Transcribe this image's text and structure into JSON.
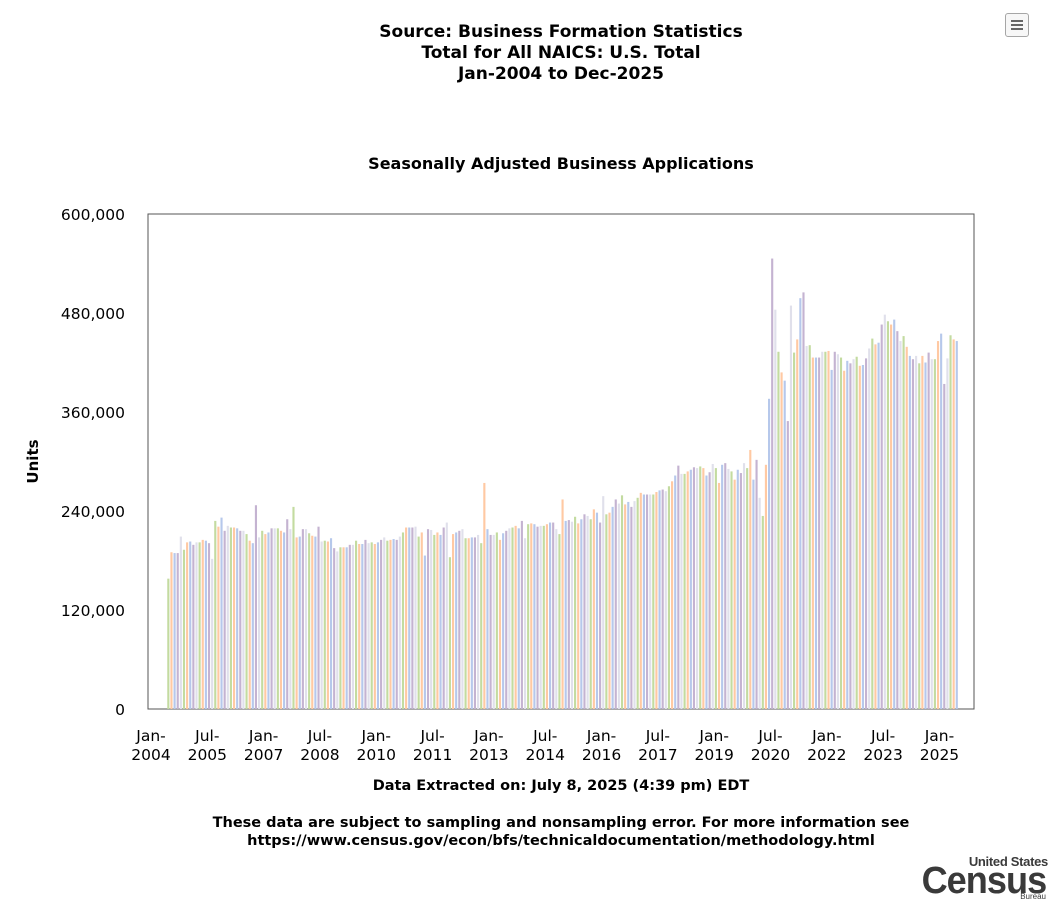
{
  "header": {
    "line1": "Source: Business Formation Statistics",
    "line2": "Total for All NAICS: U.S. Total",
    "line3": "Jan-2004 to Dec-2025"
  },
  "footer": {
    "extracted": "Data Extracted on: July 8, 2025 (4:39 pm) EDT",
    "note_line1": "These data are subject to sampling and nonsampling error. For more information see",
    "note_line2": "https://www.census.gov/econ/bfs/technicaldocumentation/methodology.html"
  },
  "logo": {
    "line1": "United States",
    "line2": "Census",
    "line3": "Bureau"
  },
  "menu_icon": "hamburger-menu-icon",
  "colors": {
    "bar_palette": [
      "#c3dba0",
      "#ffc9a3",
      "#b6c8eb",
      "#c4b3d1",
      "#e0e0eb"
    ]
  },
  "chart_data": {
    "type": "bar",
    "title": "Seasonally Adjusted Business Applications",
    "xlabel": "",
    "ylabel": "Units",
    "ylim": [
      0,
      600000
    ],
    "yticks": [
      "0",
      "120,000",
      "240,000",
      "360,000",
      "480,000",
      "600,000"
    ],
    "xticks": [
      {
        "label": [
          "Jan-",
          "2004"
        ],
        "month": 0
      },
      {
        "label": [
          "Jul-",
          "2005"
        ],
        "month": 18
      },
      {
        "label": [
          "Jan-",
          "2007"
        ],
        "month": 36
      },
      {
        "label": [
          "Jul-",
          "2008"
        ],
        "month": 54
      },
      {
        "label": [
          "Jan-",
          "2010"
        ],
        "month": 72
      },
      {
        "label": [
          "Jul-",
          "2011"
        ],
        "month": 90
      },
      {
        "label": [
          "Jan-",
          "2013"
        ],
        "month": 108
      },
      {
        "label": [
          "Jul-",
          "2014"
        ],
        "month": 126
      },
      {
        "label": [
          "Jan-",
          "2016"
        ],
        "month": 144
      },
      {
        "label": [
          "Jul-",
          "2017"
        ],
        "month": 162
      },
      {
        "label": [
          "Jan-",
          "2019"
        ],
        "month": 180
      },
      {
        "label": [
          "Jul-",
          "2020"
        ],
        "month": 198
      },
      {
        "label": [
          "Jan-",
          "2022"
        ],
        "month": 216
      },
      {
        "label": [
          "Jul-",
          "2023"
        ],
        "month": 234
      },
      {
        "label": [
          "Jan-",
          "2025"
        ],
        "month": 252
      }
    ],
    "start": "Jul-2004",
    "values": [
      158000,
      190000,
      189000,
      189000,
      209000,
      193000,
      202000,
      203000,
      199000,
      202000,
      202000,
      205000,
      204000,
      201000,
      182000,
      228000,
      221000,
      232000,
      216000,
      222000,
      220000,
      220000,
      219000,
      216000,
      216000,
      212000,
      204000,
      201000,
      247000,
      208000,
      216000,
      212000,
      214000,
      219000,
      219000,
      219000,
      216000,
      214000,
      230000,
      218000,
      245000,
      208000,
      209000,
      218000,
      218000,
      213000,
      210000,
      209000,
      221000,
      203000,
      204000,
      203000,
      207000,
      195000,
      191000,
      196000,
      196000,
      196000,
      199000,
      199000,
      204000,
      200000,
      200000,
      205000,
      201000,
      202000,
      200000,
      202000,
      205000,
      208000,
      204000,
      205000,
      206000,
      205000,
      209000,
      214000,
      220000,
      220000,
      220000,
      221000,
      209000,
      214000,
      186000,
      218000,
      217000,
      211000,
      214000,
      211000,
      220000,
      226000,
      184000,
      212000,
      214000,
      216000,
      218000,
      207000,
      207000,
      208000,
      208000,
      211000,
      201000,
      274000,
      218000,
      211000,
      211000,
      214000,
      205000,
      213000,
      216000,
      219000,
      220000,
      222000,
      219000,
      228000,
      207000,
      224000,
      225000,
      224000,
      221000,
      222000,
      222000,
      224000,
      226000,
      226000,
      218000,
      212000,
      254000,
      228000,
      229000,
      227000,
      233000,
      225000,
      230000,
      236000,
      234000,
      230000,
      242000,
      238000,
      226000,
      258000,
      236000,
      238000,
      245000,
      254000,
      249000,
      259000,
      248000,
      251000,
      245000,
      252000,
      256000,
      262000,
      260000,
      260000,
      260000,
      260000,
      263000,
      265000,
      266000,
      264000,
      270000,
      276000,
      283000,
      295000,
      285000,
      285000,
      288000,
      290000,
      293000,
      292000,
      294000,
      292000,
      283000,
      287000,
      297000,
      292000,
      274000,
      296000,
      298000,
      291000,
      288000,
      278000,
      290000,
      286000,
      298000,
      292000,
      314000,
      278000,
      302000,
      256000,
      234000,
      296000,
      376000,
      546000,
      484000,
      433000,
      408000,
      398000,
      349000,
      489000,
      432000,
      448000,
      498000,
      505000,
      440000,
      441000,
      426000,
      426000,
      426000,
      433000,
      433000,
      434000,
      411000,
      433000,
      430000,
      426000,
      410000,
      422000,
      419000,
      424000,
      427000,
      416000,
      417000,
      425000,
      437000,
      449000,
      442000,
      444000,
      466000,
      478000,
      470000,
      466000,
      472000,
      458000,
      446000,
      452000,
      439000,
      428000,
      424000,
      428000,
      419000,
      428000,
      420000,
      432000,
      424000,
      424000,
      446000,
      455000,
      394000,
      425000,
      453000,
      448000,
      446000
    ]
  }
}
